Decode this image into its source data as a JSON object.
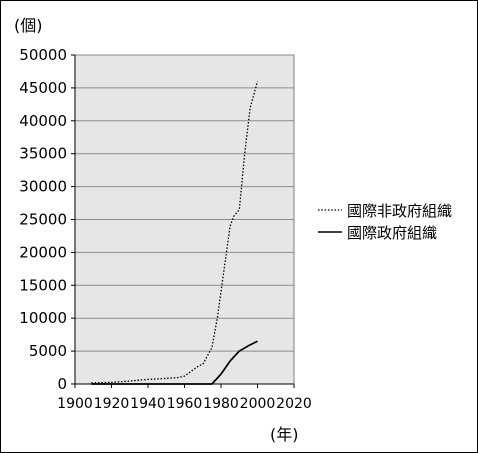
{
  "chart_data": {
    "type": "line",
    "y_unit_label": "(個)",
    "x_unit_label": "(年)",
    "xlim": [
      1900,
      2020
    ],
    "ylim": [
      0,
      50000
    ],
    "x_ticks": [
      "1900",
      "1920",
      "1940",
      "1960",
      "1980",
      "2000",
      "2020"
    ],
    "y_ticks": [
      "0",
      "5000",
      "10000",
      "15000",
      "20000",
      "25000",
      "30000",
      "35000",
      "40000",
      "45000",
      "50000"
    ],
    "grid": "horizontal",
    "plot_background": "#e6e6e6",
    "legend_position": "right",
    "series": [
      {
        "name": "國際非政府組織",
        "style": "dotted",
        "color": "#000000",
        "points": [
          [
            1909,
            170
          ],
          [
            1920,
            250
          ],
          [
            1930,
            450
          ],
          [
            1940,
            700
          ],
          [
            1950,
            850
          ],
          [
            1956,
            950
          ],
          [
            1960,
            1200
          ],
          [
            1964,
            2000
          ],
          [
            1968,
            2800
          ],
          [
            1970,
            3000
          ],
          [
            1972,
            4000
          ],
          [
            1975,
            5500
          ],
          [
            1978,
            10000
          ],
          [
            1981,
            16000
          ],
          [
            1985,
            24000
          ],
          [
            1987,
            25500
          ],
          [
            1990,
            26500
          ],
          [
            1993,
            35000
          ],
          [
            1996,
            42000
          ],
          [
            2000,
            46000
          ]
        ]
      },
      {
        "name": "國際政府組織",
        "style": "solid",
        "color": "#000000",
        "points": [
          [
            1909,
            0
          ],
          [
            1920,
            0
          ],
          [
            1940,
            0
          ],
          [
            1960,
            0
          ],
          [
            1975,
            0
          ],
          [
            1980,
            1500
          ],
          [
            1985,
            3500
          ],
          [
            1990,
            5000
          ],
          [
            1995,
            5800
          ],
          [
            2000,
            6500
          ]
        ]
      }
    ]
  }
}
